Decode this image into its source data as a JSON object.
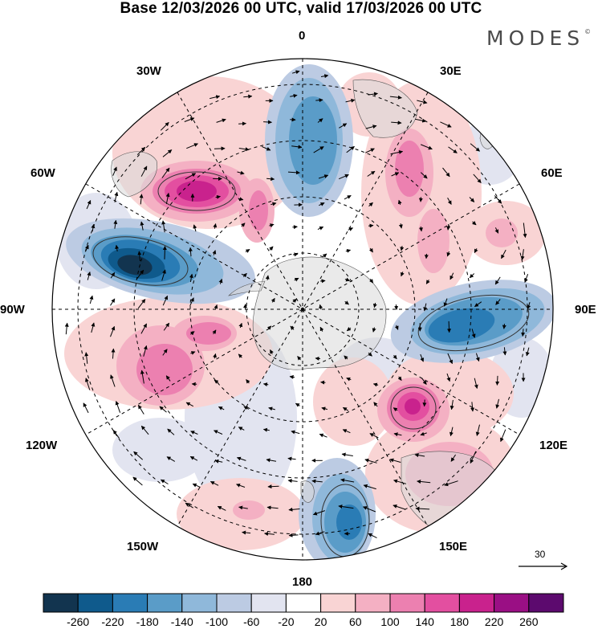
{
  "title": "Base 12/03/2026 00 UTC, valid 17/03/2026 00 UTC",
  "logo": "MODES",
  "logo_mark": "©",
  "longitude_labels": {
    "lon_0": "0",
    "lon_30e": "30E",
    "lon_60e": "60E",
    "lon_90e": "90E",
    "lon_120e": "120E",
    "lon_150e": "150E",
    "lon_180": "180",
    "lon_150w": "150W",
    "lon_120w": "120W",
    "lon_90w": "90W",
    "lon_60w": "60W",
    "lon_30w": "30W"
  },
  "reference_vector": {
    "value": "30"
  },
  "colorbar": {
    "ticks": [
      "-260",
      "-220",
      "-180",
      "-140",
      "-100",
      "-60",
      "-20",
      "20",
      "60",
      "100",
      "140",
      "180",
      "220",
      "260"
    ],
    "colors": [
      "#12344f",
      "#0f5a8c",
      "#2a7cb5",
      "#5a9cc8",
      "#8fb8da",
      "#bccbe3",
      "#e2e4f0",
      "#ffffff",
      "#f9d4d4",
      "#f4b0c3",
      "#ec80b0",
      "#e34fa0",
      "#c9228d",
      "#9a0f84",
      "#5c0a6e"
    ]
  }
}
